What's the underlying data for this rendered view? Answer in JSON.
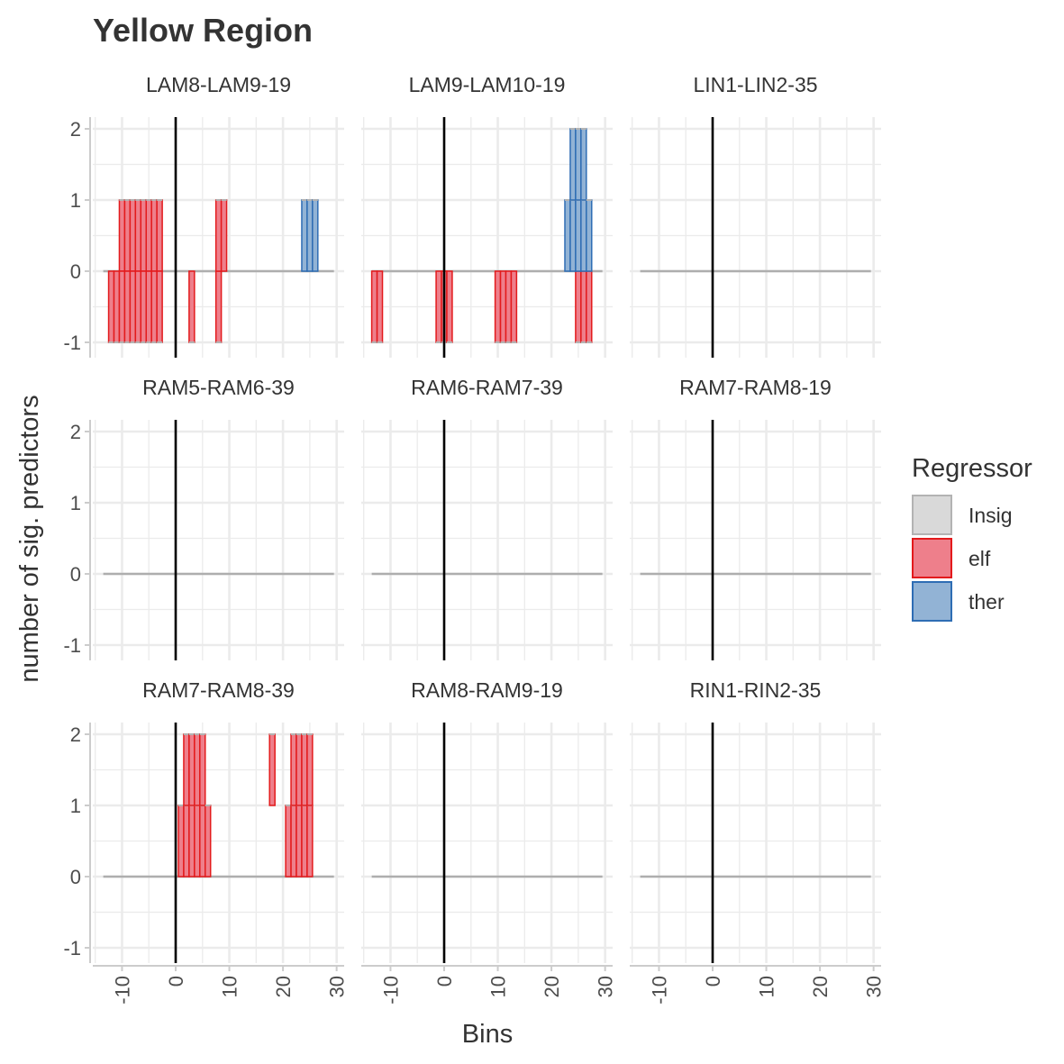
{
  "chart_data": {
    "type": "bar",
    "title": "Yellow Region",
    "xlabel": "Bins",
    "ylabel": "number of sig. predictors",
    "xlim": [
      -15,
      30
    ],
    "ylim": [
      -1,
      2
    ],
    "xticks": [
      -10,
      0,
      10,
      20,
      30
    ],
    "yticks": [
      -1,
      0,
      1,
      2
    ],
    "vline_x": 0,
    "grid": true,
    "legend": {
      "title": "Regressor",
      "position": "right",
      "entries": [
        {
          "label": "Insig",
          "fill": "#d9d9d9",
          "stroke": "#b3b3b3"
        },
        {
          "label": "elf",
          "fill": "#ee7f8b",
          "stroke": "#e31a1c"
        },
        {
          "label": "ther",
          "fill": "#92b3d5",
          "stroke": "#2e6db4"
        }
      ]
    },
    "panels": [
      {
        "label": "LAM8-LAM9-19",
        "elf": [
          [
            -12,
            -1
          ],
          [
            -11,
            -1
          ],
          [
            -10,
            1
          ],
          [
            -10,
            -1
          ],
          [
            -9,
            1
          ],
          [
            -9,
            -1
          ],
          [
            -8,
            1
          ],
          [
            -8,
            -1
          ],
          [
            -7,
            1
          ],
          [
            -7,
            -1
          ],
          [
            -6,
            1
          ],
          [
            -6,
            -1
          ],
          [
            -5,
            1
          ],
          [
            -5,
            -1
          ],
          [
            -4,
            1
          ],
          [
            -4,
            -1
          ],
          [
            -3,
            1
          ],
          [
            -3,
            -1
          ],
          [
            3,
            -1
          ],
          [
            8,
            -1
          ],
          [
            8,
            1
          ],
          [
            9,
            1
          ]
        ],
        "ther": [
          [
            24,
            1
          ],
          [
            25,
            1
          ],
          [
            26,
            1
          ]
        ]
      },
      {
        "label": "LAM9-LAM10-19",
        "elf": [
          [
            -13,
            -1
          ],
          [
            -12,
            -1
          ],
          [
            -1,
            -1
          ],
          [
            0,
            -1
          ],
          [
            1,
            -1
          ],
          [
            10,
            -1
          ],
          [
            11,
            -1
          ],
          [
            12,
            -1
          ],
          [
            13,
            -1
          ],
          [
            25,
            -1
          ],
          [
            26,
            -1
          ],
          [
            27,
            -1
          ]
        ],
        "ther": [
          [
            23,
            1
          ],
          [
            24,
            1
          ],
          [
            24,
            2
          ],
          [
            25,
            1
          ],
          [
            25,
            2
          ],
          [
            26,
            1
          ],
          [
            26,
            2
          ],
          [
            27,
            1
          ]
        ]
      },
      {
        "label": "LIN1-LIN2-35",
        "elf": [],
        "ther": []
      },
      {
        "label": "RAM5-RAM6-39",
        "elf": [],
        "ther": []
      },
      {
        "label": "RAM6-RAM7-39",
        "elf": [],
        "ther": []
      },
      {
        "label": "RAM7-RAM8-19",
        "elf": [],
        "ther": []
      },
      {
        "label": "RAM7-RAM8-39",
        "elf": [
          [
            1,
            1
          ],
          [
            2,
            1
          ],
          [
            2,
            2
          ],
          [
            3,
            1
          ],
          [
            3,
            2
          ],
          [
            4,
            1
          ],
          [
            4,
            2
          ],
          [
            5,
            1
          ],
          [
            5,
            2
          ],
          [
            6,
            1
          ],
          [
            18,
            2
          ],
          [
            21,
            1
          ],
          [
            22,
            1
          ],
          [
            22,
            2
          ],
          [
            23,
            1
          ],
          [
            23,
            2
          ],
          [
            24,
            1
          ],
          [
            24,
            2
          ],
          [
            25,
            1
          ],
          [
            25,
            2
          ]
        ],
        "ther": []
      },
      {
        "label": "RAM8-RAM9-19",
        "elf": [],
        "ther": []
      },
      {
        "label": "RIN1-RIN2-35",
        "elf": [],
        "ther": []
      }
    ]
  }
}
